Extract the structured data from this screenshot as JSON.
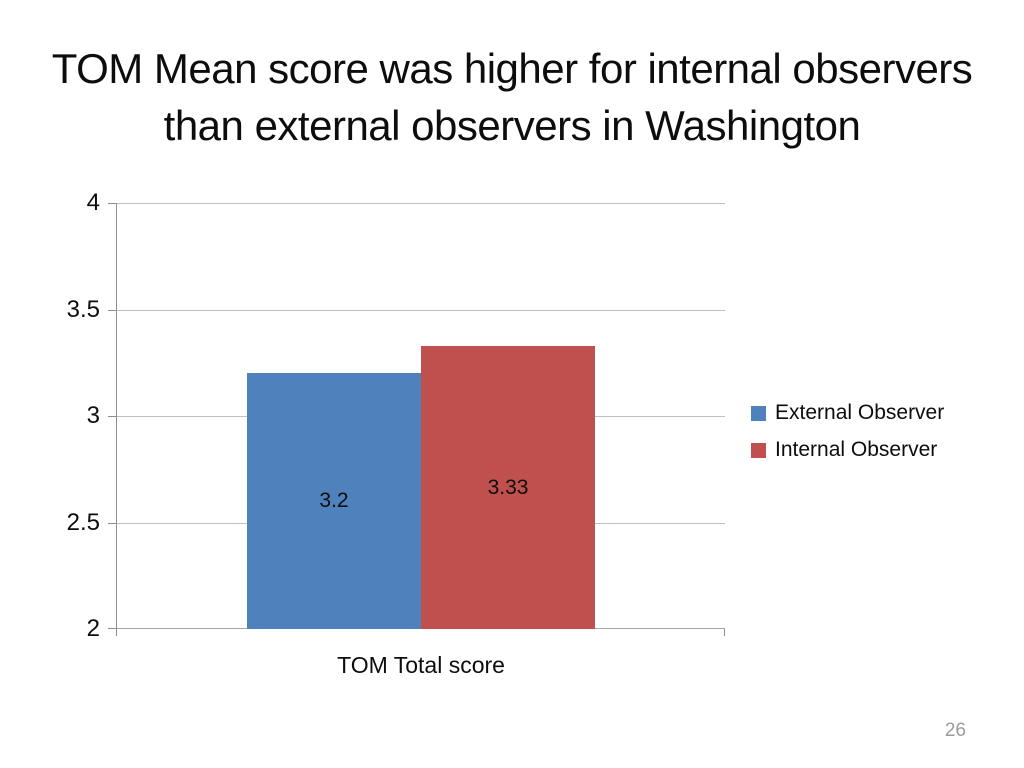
{
  "slide": {
    "title_lines": [
      "TOM Mean score was higher for internal observers",
      "than external observers in Washington"
    ],
    "page_number": "26"
  },
  "chart_data": {
    "type": "bar",
    "categories": [
      "TOM Total score"
    ],
    "series": [
      {
        "name": "External Observer",
        "values": [
          3.2
        ],
        "data_labels": [
          "3.2"
        ],
        "color": "#4F81BD"
      },
      {
        "name": "Internal Observer",
        "values": [
          3.33
        ],
        "data_labels": [
          "3.33"
        ],
        "color": "#C0504D"
      }
    ],
    "ylim": [
      2,
      4
    ],
    "yticks": [
      "2",
      "2.5",
      "3",
      "3.5",
      "4"
    ],
    "grid": "horizontal",
    "legend_position": "right",
    "data_label_position": "center"
  }
}
